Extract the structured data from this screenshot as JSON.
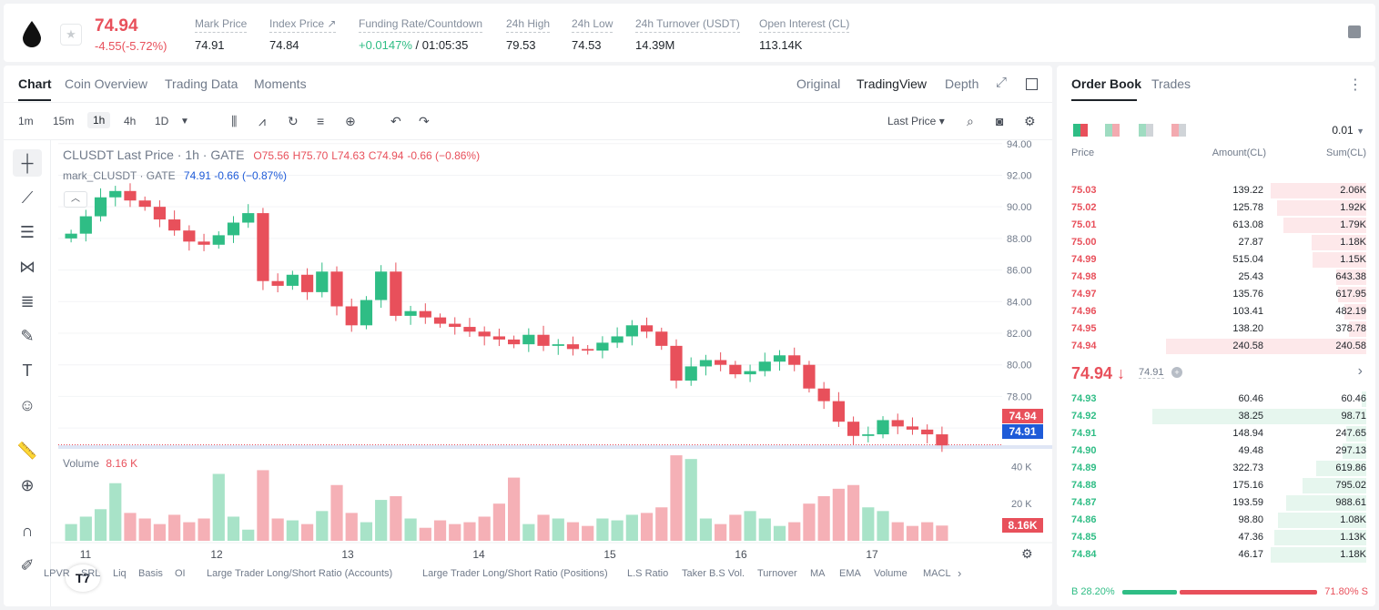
{
  "header": {
    "last_price": "74.94",
    "change": "-4.55(-5.72%)",
    "stats": [
      {
        "label": "Mark Price",
        "value": "74.91"
      },
      {
        "label": "Index Price ↗",
        "value": "74.84"
      },
      {
        "label": "Funding Rate/Countdown",
        "value_green": "+0.0147%",
        "value": " / 01:05:35"
      },
      {
        "label": "24h High",
        "value": "79.53"
      },
      {
        "label": "24h Low",
        "value": "74.53"
      },
      {
        "label": "24h Turnover (USDT)",
        "value": "14.39M"
      },
      {
        "label": "Open Interest (CL)",
        "value": "113.14K"
      }
    ]
  },
  "chart_panel": {
    "tabs": [
      "Chart",
      "Coin Overview",
      "Trading Data",
      "Moments"
    ],
    "view_tabs": [
      "Original",
      "TradingView",
      "Depth"
    ],
    "timeframes": [
      "1m",
      "15m",
      "1h",
      "4h",
      "1D"
    ],
    "price_type": "Last Price ▾",
    "legend_symbol": "CLUSDT Last Price · 1h · GATE",
    "legend_ohlc": {
      "o": "O75.56",
      "h": "H75.70",
      "l": "L74.63",
      "c": "C74.94",
      "chg": "-0.66 (−0.86%)"
    },
    "legend_mark": "mark_CLUSDT · GATE",
    "legend_mark_vals": "74.91   -0.66 (−0.87%)",
    "volume_label": "Volume",
    "volume_value": "8.16 K",
    "last_tag": "74.94",
    "mark_tag": "74.91",
    "vol_tag": "8.16K",
    "tv_logo": "T7",
    "indicators": [
      "LPVR",
      "SRL",
      "Liq",
      "Basis",
      "OI",
      "Large Trader Long/Short Ratio (Accounts)",
      "Large Trader Long/Short Ratio (Positions)",
      "L.S Ratio",
      "Taker B.S Vol.",
      "Turnover",
      "MA",
      "EMA",
      "Volume",
      "MACL"
    ]
  },
  "chart_data": {
    "type": "candlestick",
    "symbol": "CLUSDT",
    "interval": "1h",
    "y_ticks": [
      "94.00",
      "92.00",
      "90.00",
      "88.00",
      "86.00",
      "84.00",
      "82.00",
      "80.00",
      "78.00",
      "76.00"
    ],
    "ylim": [
      75.2,
      94.1
    ],
    "x_ticks": [
      "11",
      "12",
      "13",
      "14",
      "15",
      "16",
      "17"
    ],
    "volume_ticks": [
      "40 K",
      "20 K"
    ],
    "volume_ylim": [
      0,
      48000
    ],
    "closes": [
      88.3,
      89.4,
      90.6,
      91.0,
      90.4,
      90.0,
      89.2,
      88.5,
      87.8,
      87.6,
      88.2,
      89.0,
      89.6,
      85.3,
      85.0,
      85.7,
      84.6,
      85.9,
      83.7,
      82.5,
      84.1,
      85.9,
      83.1,
      83.4,
      83.0,
      82.6,
      82.4,
      82.1,
      81.8,
      81.6,
      81.3,
      81.9,
      81.2,
      81.3,
      81.0,
      80.9,
      81.4,
      81.8,
      82.5,
      82.1,
      81.2,
      79.0,
      79.9,
      80.3,
      80.0,
      79.4,
      79.6,
      80.2,
      80.6,
      80.0,
      78.5,
      77.7,
      76.4,
      75.5,
      75.6,
      76.5,
      76.1,
      75.9,
      75.6,
      74.9
    ],
    "volumes": [
      9000,
      13000,
      17000,
      31000,
      15000,
      12000,
      9000,
      14000,
      10000,
      12000,
      36000,
      13000,
      6000,
      38000,
      12000,
      11000,
      9000,
      16000,
      30000,
      15000,
      10000,
      22000,
      24000,
      12000,
      7000,
      11000,
      9000,
      10000,
      13000,
      20000,
      34000,
      9000,
      14000,
      12000,
      10000,
      8000,
      12000,
      11000,
      14000,
      15000,
      18000,
      46000,
      44000,
      12000,
      9000,
      14000,
      16000,
      12000,
      8000,
      10000,
      20000,
      24000,
      28000,
      30000,
      18000,
      16000,
      10000,
      8000,
      10000,
      8200
    ],
    "last_price": 74.94,
    "mark_price": 74.91
  },
  "orderbook": {
    "tabs": [
      "Order Book",
      "Trades"
    ],
    "precision": "0.01",
    "col_price": "Price",
    "col_amount": "Amount(CL)",
    "col_sum": "Sum(CL)",
    "asks": [
      {
        "p": "75.03",
        "a": "139.22",
        "s": "2.06K",
        "depth": 1.0
      },
      {
        "p": "75.02",
        "a": "125.78",
        "s": "1.92K",
        "depth": 0.93
      },
      {
        "p": "75.01",
        "a": "613.08",
        "s": "1.79K",
        "depth": 0.87
      },
      {
        "p": "75.00",
        "a": "27.87",
        "s": "1.18K",
        "depth": 0.57
      },
      {
        "p": "74.99",
        "a": "515.04",
        "s": "1.15K",
        "depth": 0.56
      },
      {
        "p": "74.98",
        "a": "25.43",
        "s": "643.38",
        "depth": 0.31
      },
      {
        "p": "74.97",
        "a": "135.76",
        "s": "617.95",
        "depth": 0.3
      },
      {
        "p": "74.96",
        "a": "103.41",
        "s": "482.19",
        "depth": 0.23
      },
      {
        "p": "74.95",
        "a": "138.20",
        "s": "378.78",
        "depth": 0.18
      },
      {
        "p": "74.94",
        "a": "240.58",
        "s": "240.58",
        "depth": 0.12
      }
    ],
    "mid_price": "74.94 ↓",
    "mid_mark": "74.91",
    "bids": [
      {
        "p": "74.93",
        "a": "60.46",
        "s": "60.46",
        "depth": 0.05
      },
      {
        "p": "74.92",
        "a": "38.25",
        "s": "98.71",
        "depth": 0.08
      },
      {
        "p": "74.91",
        "a": "148.94",
        "s": "247.65",
        "depth": 0.21
      },
      {
        "p": "74.90",
        "a": "49.48",
        "s": "297.13",
        "depth": 0.25
      },
      {
        "p": "74.89",
        "a": "322.73",
        "s": "619.86",
        "depth": 0.52
      },
      {
        "p": "74.88",
        "a": "175.16",
        "s": "795.02",
        "depth": 0.67
      },
      {
        "p": "74.87",
        "a": "193.59",
        "s": "988.61",
        "depth": 0.84
      },
      {
        "p": "74.86",
        "a": "98.80",
        "s": "1.08K",
        "depth": 0.92
      },
      {
        "p": "74.85",
        "a": "47.36",
        "s": "1.13K",
        "depth": 0.96
      },
      {
        "p": "74.84",
        "a": "46.17",
        "s": "1.18K",
        "depth": 1.0
      }
    ],
    "buy_ratio": "B 28.20%",
    "sell_ratio": "71.80% S",
    "buy_fraction": 0.282
  },
  "colors": {
    "up": "#2fbd85",
    "down": "#e8505b",
    "mark": "#1e5bd8"
  }
}
